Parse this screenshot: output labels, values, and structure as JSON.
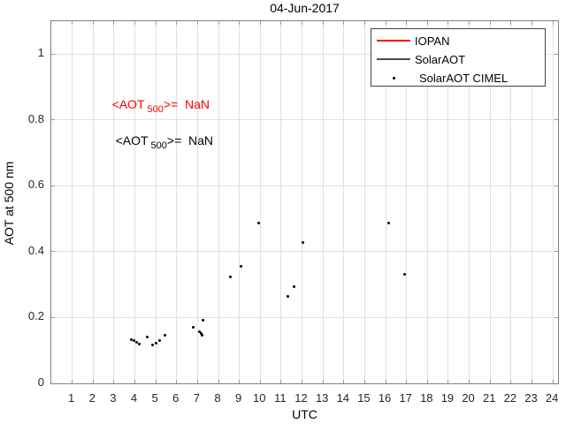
{
  "figure": {
    "title": "04-Jun-2017",
    "xlabel": "UTC",
    "ylabel": "AOT at 500 nm"
  },
  "annotations": {
    "iopan": {
      "pre": "<AOT",
      "sub": "500",
      "post": ">=  NaN",
      "color": "#ff0000"
    },
    "solaraot": {
      "pre": "<AOT",
      "sub": "500",
      "post": ">=  NaN",
      "color": "#000000"
    }
  },
  "legend": {
    "position": "top-right",
    "entries": [
      {
        "label": "IOPAN",
        "sample": "line",
        "color": "#ff0000"
      },
      {
        "label": "SolarAOT",
        "sample": "line",
        "color": "#4d4d4d"
      },
      {
        "label": "SolarAOT CIMEL",
        "sample": "dot",
        "color": "#000000"
      }
    ]
  },
  "chart_data": {
    "type": "scatter",
    "title": "04-Jun-2017",
    "xlabel": "UTC",
    "ylabel": "AOT at 500 nm",
    "xlim": [
      0,
      24.25
    ],
    "ylim": [
      0,
      1.1
    ],
    "x_ticks": [
      1,
      2,
      3,
      4,
      5,
      6,
      7,
      8,
      9,
      10,
      11,
      12,
      13,
      14,
      15,
      16,
      17,
      18,
      19,
      20,
      21,
      22,
      23,
      24
    ],
    "x_tick_labels": [
      "1",
      "2",
      "3",
      "4",
      "5",
      "6",
      "7",
      "8",
      "9",
      "10",
      "11",
      "12",
      "13",
      "14",
      "15",
      "16",
      "17",
      "18",
      "19",
      "20",
      "21",
      "22",
      "23",
      "24"
    ],
    "y_ticks": [
      0,
      0.2,
      0.4,
      0.6,
      0.8,
      1
    ],
    "y_tick_labels": [
      "0",
      "0.2",
      "0.4",
      "0.6",
      "0.8",
      "1"
    ],
    "grid": true,
    "legend_position": "top-right",
    "colors": {
      "grid": "#e0e0e0",
      "axis_box": "#808080",
      "tick_marks": "#999999",
      "tick_text": "#262626",
      "marker": "#000000"
    },
    "series": [
      {
        "name": "SolarAOT CIMEL",
        "type": "scatter",
        "marker": "point",
        "color": "#000000",
        "points": [
          [
            3.81,
            0.134
          ],
          [
            3.96,
            0.129
          ],
          [
            4.08,
            0.126
          ],
          [
            4.23,
            0.12
          ],
          [
            4.61,
            0.142
          ],
          [
            4.86,
            0.117
          ],
          [
            5.03,
            0.122
          ],
          [
            5.2,
            0.129
          ],
          [
            5.45,
            0.145
          ],
          [
            6.8,
            0.17
          ],
          [
            7.08,
            0.158
          ],
          [
            7.17,
            0.152
          ],
          [
            7.21,
            0.146
          ],
          [
            7.26,
            0.193
          ],
          [
            8.57,
            0.324
          ],
          [
            9.08,
            0.355
          ],
          [
            9.91,
            0.488
          ],
          [
            11.32,
            0.264
          ],
          [
            11.6,
            0.293
          ],
          [
            12.02,
            0.429
          ],
          [
            16.15,
            0.488
          ],
          [
            16.89,
            0.332
          ]
        ]
      },
      {
        "name": "IOPAN",
        "type": "line",
        "color": "#ff0000",
        "points": []
      },
      {
        "name": "SolarAOT",
        "type": "line",
        "color": "#4d4d4d",
        "points": []
      }
    ]
  }
}
